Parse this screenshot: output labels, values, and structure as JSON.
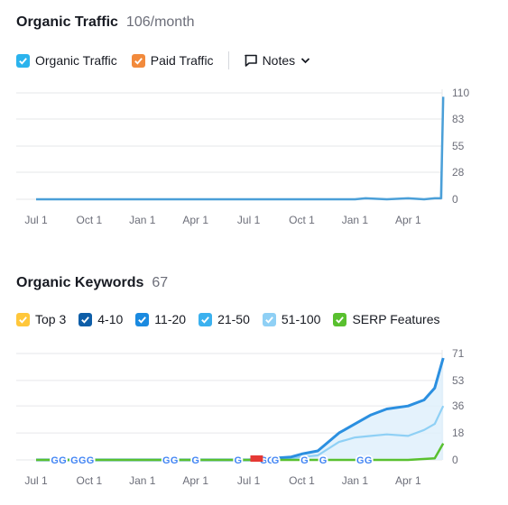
{
  "traffic": {
    "title": "Organic Traffic",
    "metric": "106/month",
    "legend": [
      {
        "label": "Organic Traffic",
        "color": "#2bb3ed",
        "checked": true
      },
      {
        "label": "Paid Traffic",
        "color": "#f28a3c",
        "checked": true
      }
    ],
    "notes_label": "Notes",
    "icons": {
      "notes": "note-icon",
      "dropdown": "chevron-down-icon"
    }
  },
  "keywords": {
    "title": "Organic Keywords",
    "metric": "67",
    "legend": [
      {
        "label": "Top 3",
        "color": "#ffc73b",
        "checked": true
      },
      {
        "label": "4-10",
        "color": "#0e5ea8",
        "checked": true
      },
      {
        "label": "11-20",
        "color": "#1a8ae0",
        "checked": true
      },
      {
        "label": "21-50",
        "color": "#3bb1ef",
        "checked": true
      },
      {
        "label": "51-100",
        "color": "#8fd0f5",
        "checked": true
      },
      {
        "label": "SERP Features",
        "color": "#59c02f",
        "checked": true
      }
    ]
  },
  "chart_data": [
    {
      "type": "line",
      "title": "Organic Traffic",
      "x_ticks": [
        "Jul 1",
        "Oct 1",
        "Jan 1",
        "Apr 1",
        "Jul 1",
        "Oct 1",
        "Jan 1",
        "Apr 1"
      ],
      "y_ticks": [
        0,
        28,
        55,
        83,
        110
      ],
      "ylim": [
        0,
        110
      ],
      "grid": true,
      "series": [
        {
          "name": "Organic Traffic",
          "color": "#4a9fd8",
          "x": [
            0,
            0.5,
            1,
            1.5,
            2,
            2.5,
            3,
            3.5,
            4,
            4.5,
            5,
            5.5,
            6,
            6.2,
            6.6,
            7,
            7.3,
            7.5,
            7.62,
            7.66
          ],
          "values": [
            0,
            0,
            0,
            0,
            0,
            0,
            0,
            0,
            0,
            0,
            0,
            0,
            0,
            1,
            0,
            1,
            0,
            1,
            1,
            106
          ]
        },
        {
          "name": "Paid Traffic",
          "color": "#f28a3c",
          "x": [
            0,
            7.66
          ],
          "values": [
            0,
            0
          ]
        }
      ]
    },
    {
      "type": "area",
      "title": "Organic Keywords",
      "x_ticks": [
        "Jul 1",
        "Oct 1",
        "Jan 1",
        "Apr 1",
        "Jul 1",
        "Oct 1",
        "Jan 1",
        "Apr 1"
      ],
      "y_ticks": [
        0,
        18,
        36,
        53,
        71
      ],
      "ylim": [
        0,
        71
      ],
      "grid": true,
      "series": [
        {
          "name": "11-20",
          "color": "#1a8ae0",
          "x": [
            0,
            1,
            2,
            3,
            4,
            4.8,
            5,
            5.3,
            5.7,
            6.0,
            6.3,
            6.6,
            7.0,
            7.3,
            7.5,
            7.66
          ],
          "values": [
            0,
            0,
            0,
            0,
            0,
            2,
            4,
            6,
            18,
            24,
            30,
            34,
            36,
            40,
            48,
            68
          ]
        },
        {
          "name": "51-100",
          "color": "#8fd0f5",
          "x": [
            0,
            1,
            2,
            3,
            4,
            4.8,
            5,
            5.3,
            5.7,
            6.0,
            6.3,
            6.6,
            7.0,
            7.3,
            7.5,
            7.66
          ],
          "values": [
            0,
            0,
            0,
            0,
            0,
            1,
            2,
            3,
            12,
            15,
            16,
            17,
            16,
            20,
            24,
            36
          ]
        },
        {
          "name": "SERP Features",
          "color": "#59c02f",
          "x": [
            0,
            1,
            2,
            3,
            4,
            5,
            6,
            7,
            7.5,
            7.66
          ],
          "values": [
            0,
            0,
            0,
            0,
            0,
            0,
            0,
            0,
            1,
            11
          ]
        }
      ],
      "annotations": {
        "google_marker": "G",
        "google_marker_x": [
          0.35,
          0.5,
          0.72,
          0.87,
          1.02,
          2.45,
          2.6,
          3.0,
          3.8,
          4.28,
          4.42,
          4.5,
          5.05,
          5.4,
          6.1,
          6.25
        ],
        "flag_marker_x": [
          4.1,
          4.2
        ]
      }
    }
  ]
}
